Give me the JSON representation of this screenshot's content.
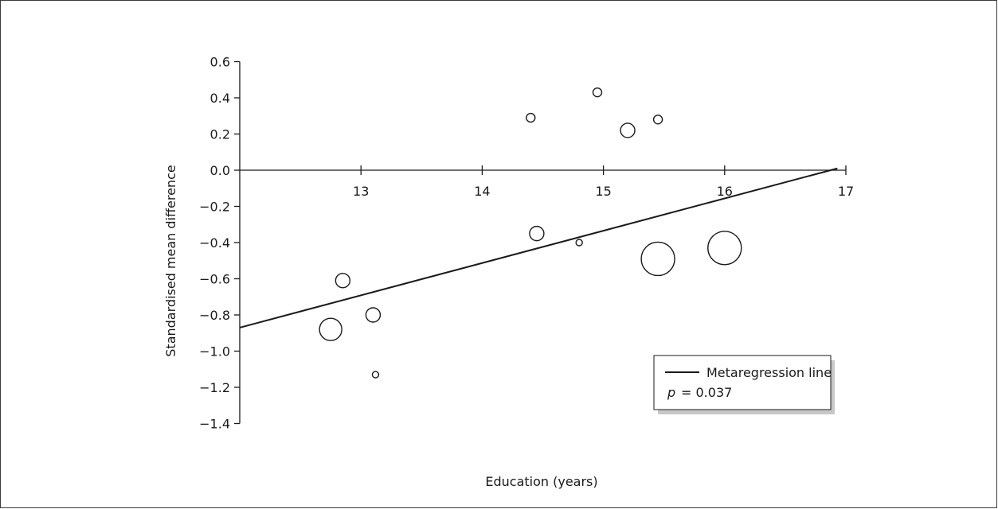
{
  "chart_data": {
    "type": "scatter",
    "xlabel": "Education (years)",
    "ylabel": "Standardised mean difference",
    "xlim": [
      12,
      17
    ],
    "ylim": [
      -1.4,
      0.6
    ],
    "x_ticks": [
      13,
      14,
      15,
      16,
      17
    ],
    "y_ticks": [
      0.6,
      0.4,
      0.2,
      0.0,
      -0.2,
      -0.4,
      -0.6,
      -0.8,
      -1.0,
      -1.2,
      -1.4
    ],
    "y_tick_labels": [
      "0.6",
      "0.4",
      "0.2",
      "0.0",
      "−0.2",
      "−0.4",
      "−0.6",
      "−0.8",
      "−1.0",
      "−1.2",
      "−1.4"
    ],
    "points": [
      {
        "x": 14.4,
        "y": 0.29,
        "size": "small"
      },
      {
        "x": 14.95,
        "y": 0.43,
        "size": "small"
      },
      {
        "x": 15.2,
        "y": 0.22,
        "size": "medium"
      },
      {
        "x": 15.45,
        "y": 0.28,
        "size": "small"
      },
      {
        "x": 12.75,
        "y": -0.88,
        "size": "large"
      },
      {
        "x": 12.85,
        "y": -0.61,
        "size": "medium"
      },
      {
        "x": 13.1,
        "y": -0.8,
        "size": "medium"
      },
      {
        "x": 13.12,
        "y": -1.13,
        "size": "tiny"
      },
      {
        "x": 14.45,
        "y": -0.35,
        "size": "medium"
      },
      {
        "x": 14.8,
        "y": -0.4,
        "size": "tiny"
      },
      {
        "x": 15.45,
        "y": -0.49,
        "size": "xlarge"
      },
      {
        "x": 16.0,
        "y": -0.43,
        "size": "xlarge"
      }
    ],
    "point_radius": {
      "tiny": 4,
      "small": 5.5,
      "medium": 9,
      "large": 14,
      "xlarge": 21
    },
    "regression_line": {
      "x": [
        12,
        16.93
      ],
      "y": [
        -0.87,
        0.01
      ]
    },
    "legend": {
      "entries": [
        "Metaregression line"
      ],
      "p_symbol": "p",
      "p_value": "= 0.037",
      "position": "bottom-right"
    }
  }
}
